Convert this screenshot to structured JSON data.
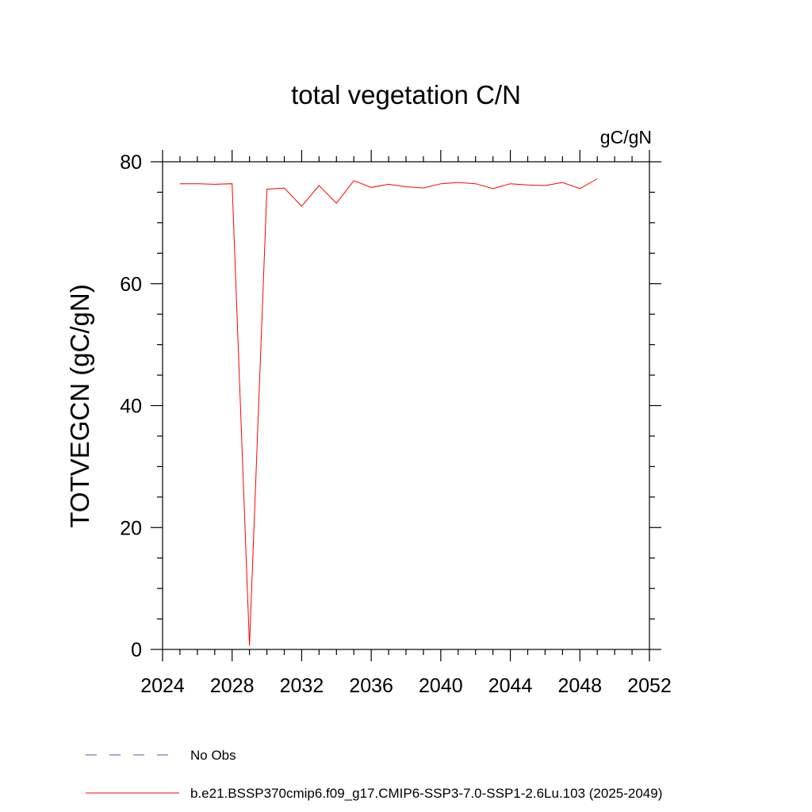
{
  "chart_data": {
    "type": "line",
    "title": "total vegetation C/N",
    "units_label": "gC/gN",
    "xlabel": "",
    "ylabel": "TOTVEGCN  (gC/gN)",
    "xlim": [
      2024,
      2052
    ],
    "ylim": [
      0,
      80
    ],
    "x_ticks": [
      2024,
      2028,
      2032,
      2036,
      2040,
      2044,
      2048,
      2052
    ],
    "y_ticks": [
      0,
      20,
      40,
      60,
      80
    ],
    "grid": false,
    "legend_position": "bottom",
    "series": [
      {
        "name": "No Obs",
        "style": "dashed",
        "color": "#5a4fa8",
        "x": [],
        "values": []
      },
      {
        "name": "b.e21.BSSP370cmip6.f09_g17.CMIP6-SSP3-7.0-SSP1-2.6Lu.103 (2025-2049)",
        "style": "solid",
        "color": "#ff0000",
        "x": [
          2025,
          2026,
          2027,
          2028,
          2029,
          2030,
          2031,
          2032,
          2033,
          2034,
          2035,
          2036,
          2037,
          2038,
          2039,
          2040,
          2041,
          2042,
          2043,
          2044,
          2045,
          2046,
          2047,
          2048,
          2049
        ],
        "values": [
          76.4,
          76.4,
          76.3,
          76.4,
          0.6,
          75.5,
          75.7,
          72.7,
          76.1,
          73.2,
          76.9,
          75.8,
          76.3,
          75.9,
          75.7,
          76.4,
          76.6,
          76.4,
          75.6,
          76.4,
          76.2,
          76.1,
          76.6,
          75.6,
          77.2
        ]
      }
    ]
  }
}
